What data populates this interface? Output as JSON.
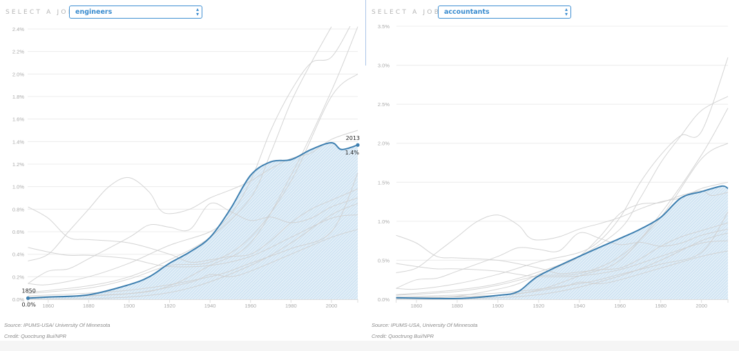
{
  "panels": [
    {
      "selector": {
        "label": "SELECT A JOB:",
        "value": "engineers"
      },
      "source": "Source: IPUMS-USA/ University Of Minnesota",
      "credit": "Credit: Quoctrung Bui/NPR"
    },
    {
      "selector": {
        "label": "SELECT A JOB:",
        "value": "accountants"
      },
      "source": "Source: IPUMS-USA, University Of Minnesota",
      "credit": "Credit: Quoctrung Bui/NPR"
    }
  ],
  "colors": {
    "highlight": "#3d7fb0",
    "highlight_fill": "#bcd8ec",
    "background_lines": "#cfcfcf",
    "gridline": "#ececec",
    "axis_text": "#aaaaaa"
  },
  "chart_data": [
    {
      "type": "line",
      "title": "",
      "xlabel": "",
      "ylabel": "",
      "x_ticks": [
        1860,
        1880,
        1900,
        1920,
        1940,
        1960,
        1980,
        2000
      ],
      "y_ticks": [
        "0.0%",
        "0.2%",
        "0.4%",
        "0.6%",
        "0.8%",
        "1.0%",
        "1.2%",
        "1.4%",
        "1.6%",
        "1.8%",
        "2.0%",
        "2.2%",
        "2.4%"
      ],
      "y_tick_values": [
        0,
        0.2,
        0.4,
        0.6,
        0.8,
        1.0,
        1.2,
        1.4,
        1.6,
        1.8,
        2.0,
        2.2,
        2.4
      ],
      "xlim": [
        1850,
        2013
      ],
      "ylim": [
        0,
        2.4
      ],
      "grid": true,
      "highlight": {
        "name": "engineers",
        "x": [
          1850,
          1860,
          1880,
          1900,
          1910,
          1920,
          1930,
          1940,
          1950,
          1960,
          1970,
          1980,
          1990,
          2000,
          2005,
          2013
        ],
        "y": [
          0.01,
          0.02,
          0.04,
          0.13,
          0.2,
          0.32,
          0.42,
          0.55,
          0.8,
          1.1,
          1.22,
          1.24,
          1.33,
          1.39,
          1.33,
          1.37
        ],
        "start_label": {
          "year": "1850",
          "value": "0.0%"
        },
        "end_label": {
          "year": "2013",
          "value": "1.4%"
        }
      },
      "background_series": [
        {
          "x": [
            1850,
            1860,
            1870,
            1880,
            1890,
            1900,
            1910,
            1915,
            1920,
            1930,
            1940,
            1950,
            1960,
            1970,
            1980,
            1990,
            2000,
            2013
          ],
          "y": [
            0.34,
            0.4,
            0.6,
            0.8,
            1.0,
            1.08,
            0.95,
            0.8,
            0.76,
            0.8,
            0.9,
            0.97,
            1.05,
            1.16,
            1.25,
            1.3,
            1.42,
            1.5
          ]
        },
        {
          "x": [
            1850,
            1860,
            1870,
            1880,
            1900,
            1920,
            1930,
            1940,
            1950,
            1960,
            1970,
            1980,
            1990,
            2000,
            2013
          ],
          "y": [
            0.82,
            0.72,
            0.55,
            0.53,
            0.5,
            0.4,
            0.33,
            0.35,
            0.38,
            0.4,
            0.52,
            0.68,
            0.8,
            0.88,
            0.98
          ]
        },
        {
          "x": [
            1850,
            1860,
            1870,
            1880,
            1900,
            1910,
            1920,
            1940,
            1960,
            1980,
            2000,
            2013
          ],
          "y": [
            0.46,
            0.42,
            0.39,
            0.39,
            0.36,
            0.32,
            0.29,
            0.3,
            0.38,
            0.55,
            0.72,
            0.75
          ]
        },
        {
          "x": [
            1850,
            1860,
            1870,
            1880,
            1900,
            1910,
            1920,
            1930,
            1940,
            1950,
            1960,
            1970,
            1980,
            1990,
            2000,
            2013
          ],
          "y": [
            0.14,
            0.25,
            0.27,
            0.36,
            0.55,
            0.66,
            0.64,
            0.62,
            0.85,
            0.78,
            0.7,
            0.73,
            0.68,
            0.72,
            0.82,
            0.9
          ]
        },
        {
          "x": [
            1850,
            1860,
            1880,
            1900,
            1920,
            1940,
            1950,
            1960,
            1970,
            1980,
            1990,
            2000,
            2010
          ],
          "y": [
            0.14,
            0.13,
            0.2,
            0.32,
            0.48,
            0.6,
            0.75,
            1.05,
            1.5,
            1.85,
            2.1,
            2.15,
            2.45
          ]
        },
        {
          "x": [
            1850,
            1880,
            1900,
            1920,
            1940,
            1960,
            1970,
            1980,
            1990,
            2000
          ],
          "y": [
            0.06,
            0.12,
            0.2,
            0.35,
            0.55,
            0.9,
            1.3,
            1.75,
            2.1,
            2.42
          ]
        },
        {
          "x": [
            1850,
            1880,
            1900,
            1920,
            1940,
            1960,
            1980,
            2000,
            2013
          ],
          "y": [
            0.05,
            0.1,
            0.18,
            0.3,
            0.33,
            0.55,
            1.05,
            1.8,
            2.0
          ]
        },
        {
          "x": [
            1850,
            1900,
            1920,
            1940,
            1960,
            1980,
            2000,
            2013
          ],
          "y": [
            0.02,
            0.05,
            0.12,
            0.3,
            0.5,
            1.1,
            1.85,
            2.42
          ]
        },
        {
          "x": [
            1850,
            1900,
            1930,
            1940,
            1950,
            1960,
            1980,
            2000,
            2013
          ],
          "y": [
            0.01,
            0.05,
            0.15,
            0.22,
            0.2,
            0.25,
            0.4,
            0.55,
            0.62
          ]
        },
        {
          "x": [
            1850,
            1900,
            1930,
            1960,
            1980,
            2000,
            2013
          ],
          "y": [
            0.0,
            0.02,
            0.1,
            0.3,
            0.5,
            0.75,
            0.85
          ]
        },
        {
          "x": [
            1850,
            1900,
            1940,
            1960,
            1980,
            2000,
            2013
          ],
          "y": [
            0.03,
            0.08,
            0.2,
            0.32,
            0.45,
            0.6,
            1.12
          ]
        }
      ]
    },
    {
      "type": "line",
      "title": "",
      "xlabel": "",
      "ylabel": "",
      "x_ticks": [
        1860,
        1880,
        1900,
        1920,
        1940,
        1960,
        1980,
        2000
      ],
      "y_ticks": [
        "0.0%",
        "0.5%",
        "1.0%",
        "1.5%",
        "2.0%",
        "2.5%",
        "3.0%",
        "3.5%"
      ],
      "y_tick_values": [
        0,
        0.5,
        1.0,
        1.5,
        2.0,
        2.5,
        3.0,
        3.5
      ],
      "xlim": [
        1850,
        2013
      ],
      "ylim": [
        0,
        3.5
      ],
      "grid": true,
      "highlight": {
        "name": "accountants",
        "x": [
          1850,
          1880,
          1900,
          1910,
          1920,
          1940,
          1960,
          1970,
          1980,
          1990,
          2000,
          2010,
          2013
        ],
        "y": [
          0.02,
          0.01,
          0.05,
          0.1,
          0.3,
          0.55,
          0.78,
          0.9,
          1.05,
          1.3,
          1.38,
          1.45,
          1.42
        ]
      },
      "background_series": [
        {
          "x": [
            1850,
            1860,
            1870,
            1880,
            1890,
            1900,
            1910,
            1915,
            1920,
            1930,
            1940,
            1950,
            1960,
            1970,
            1980,
            1990,
            2000,
            2013
          ],
          "y": [
            0.34,
            0.4,
            0.6,
            0.8,
            1.0,
            1.08,
            0.95,
            0.8,
            0.76,
            0.8,
            0.9,
            0.97,
            1.05,
            1.16,
            1.25,
            1.3,
            1.42,
            1.5
          ]
        },
        {
          "x": [
            1850,
            1860,
            1870,
            1880,
            1900,
            1920,
            1930,
            1940,
            1950,
            1960,
            1970,
            1980,
            1990,
            2000,
            2013
          ],
          "y": [
            0.82,
            0.72,
            0.55,
            0.53,
            0.5,
            0.4,
            0.33,
            0.35,
            0.38,
            0.4,
            0.52,
            0.68,
            0.8,
            0.88,
            0.98
          ]
        },
        {
          "x": [
            1850,
            1860,
            1870,
            1880,
            1900,
            1910,
            1920,
            1940,
            1960,
            1980,
            2000,
            2013
          ],
          "y": [
            0.46,
            0.42,
            0.39,
            0.39,
            0.36,
            0.32,
            0.29,
            0.3,
            0.38,
            0.55,
            0.72,
            0.75
          ]
        },
        {
          "x": [
            1850,
            1860,
            1870,
            1880,
            1900,
            1910,
            1920,
            1930,
            1940,
            1950,
            1960,
            1970,
            1980,
            1990,
            2000,
            2013
          ],
          "y": [
            0.14,
            0.25,
            0.27,
            0.36,
            0.55,
            0.66,
            0.64,
            0.62,
            0.85,
            0.78,
            0.7,
            0.73,
            0.68,
            0.72,
            0.82,
            0.9
          ]
        },
        {
          "x": [
            1850,
            1860,
            1880,
            1900,
            1920,
            1940,
            1950,
            1960,
            1970,
            1980,
            1990,
            2000,
            2013
          ],
          "y": [
            0.14,
            0.13,
            0.2,
            0.32,
            0.48,
            0.6,
            0.75,
            1.05,
            1.5,
            1.85,
            2.1,
            2.15,
            3.1
          ]
        },
        {
          "x": [
            1850,
            1880,
            1900,
            1920,
            1940,
            1960,
            1970,
            1980,
            1990,
            2000,
            2013
          ],
          "y": [
            0.06,
            0.12,
            0.2,
            0.35,
            0.55,
            0.9,
            1.3,
            1.75,
            2.1,
            2.42,
            2.6
          ]
        },
        {
          "x": [
            1850,
            1880,
            1900,
            1920,
            1940,
            1960,
            1980,
            2000,
            2013
          ],
          "y": [
            0.05,
            0.1,
            0.18,
            0.3,
            0.33,
            0.55,
            1.05,
            1.8,
            2.0
          ]
        },
        {
          "x": [
            1850,
            1900,
            1920,
            1940,
            1960,
            1980,
            2000,
            2013
          ],
          "y": [
            0.02,
            0.05,
            0.12,
            0.3,
            0.5,
            1.1,
            1.85,
            2.45
          ]
        },
        {
          "x": [
            1850,
            1900,
            1930,
            1940,
            1950,
            1960,
            1980,
            2000,
            2013
          ],
          "y": [
            0.01,
            0.05,
            0.15,
            0.22,
            0.2,
            0.25,
            0.4,
            0.55,
            0.62
          ]
        },
        {
          "x": [
            1850,
            1900,
            1930,
            1960,
            1980,
            2000,
            2013
          ],
          "y": [
            0.0,
            0.02,
            0.1,
            0.3,
            0.5,
            0.75,
            0.85
          ]
        },
        {
          "x": [
            1850,
            1900,
            1940,
            1960,
            1980,
            2000,
            2013
          ],
          "y": [
            0.03,
            0.08,
            0.2,
            0.32,
            0.45,
            0.6,
            1.12
          ]
        },
        {
          "x": [
            1850,
            1860,
            1880,
            1900,
            1910,
            1920,
            1930,
            1940,
            1950,
            1960,
            1970,
            1980,
            1990,
            2000,
            2005,
            2013
          ],
          "y": [
            0.01,
            0.02,
            0.04,
            0.13,
            0.2,
            0.32,
            0.42,
            0.55,
            0.8,
            1.1,
            1.22,
            1.24,
            1.33,
            1.39,
            1.33,
            1.37
          ]
        }
      ]
    }
  ]
}
